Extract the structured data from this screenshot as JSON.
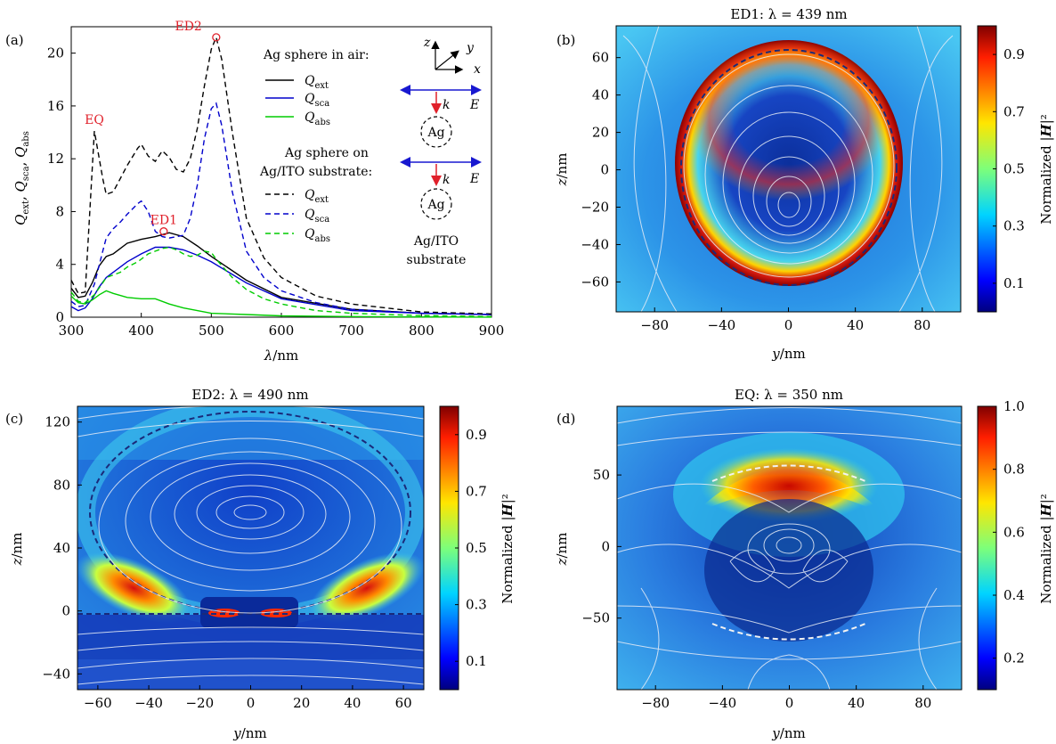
{
  "chart_data": [
    {
      "panel": "(a)",
      "type": "line",
      "xlabel": "λ/nm",
      "ylabel": "Q_ext, Q_sca, Q_abs",
      "xlim": [
        300,
        900
      ],
      "ylim": [
        0,
        22
      ],
      "xticks": [
        "300",
        "400",
        "500",
        "600",
        "700",
        "800",
        "900"
      ],
      "yticks": [
        "0",
        "4",
        "8",
        "12",
        "16",
        "20"
      ],
      "legend_headers": [
        "Ag sphere in air:",
        "Ag sphere on",
        "Ag/ITO substrate:"
      ],
      "inset_labels": {
        "axis_z": "z",
        "axis_y": "y",
        "axis_x": "x",
        "field_E": "E",
        "wavevector_k": "k",
        "sphere": "Ag",
        "substrate_l1": "Ag/ITO",
        "substrate_l2": "substrate"
      },
      "annotations": [
        {
          "text": "EQ",
          "x": 333,
          "y": 14.1
        },
        {
          "text": "ED1",
          "x": 432,
          "y": 6.5
        },
        {
          "text": "ED2",
          "x": 507,
          "y": 21.2
        }
      ],
      "series": [
        {
          "name": "Q_ext",
          "group": "air",
          "color": "#000000",
          "dash": false,
          "x": [
            300,
            310,
            320,
            330,
            340,
            350,
            360,
            380,
            400,
            420,
            440,
            460,
            480,
            500,
            550,
            600,
            700,
            800,
            900
          ],
          "y": [
            2.2,
            1.5,
            1.6,
            2.6,
            3.9,
            4.6,
            4.8,
            5.6,
            5.9,
            6.1,
            6.4,
            6.1,
            5.4,
            4.6,
            2.8,
            1.5,
            0.6,
            0.3,
            0.2
          ]
        },
        {
          "name": "Q_sca",
          "group": "air",
          "color": "#0000cc",
          "dash": false,
          "x": [
            300,
            310,
            320,
            330,
            340,
            350,
            360,
            380,
            400,
            420,
            440,
            460,
            480,
            500,
            550,
            600,
            700,
            800,
            900
          ],
          "y": [
            0.8,
            0.5,
            0.7,
            1.4,
            2.3,
            3.0,
            3.4,
            4.2,
            4.8,
            5.3,
            5.3,
            5.1,
            4.7,
            4.2,
            2.6,
            1.4,
            0.5,
            0.3,
            0.2
          ]
        },
        {
          "name": "Q_abs",
          "group": "air",
          "color": "#00cc00",
          "dash": false,
          "x": [
            300,
            310,
            320,
            330,
            340,
            350,
            360,
            380,
            400,
            420,
            440,
            460,
            480,
            500,
            550,
            600,
            700,
            800,
            900
          ],
          "y": [
            1.6,
            1.1,
            1.0,
            1.3,
            1.7,
            2.0,
            1.8,
            1.5,
            1.4,
            1.4,
            1.0,
            0.7,
            0.5,
            0.3,
            0.2,
            0.1,
            0.05,
            0.02,
            0.01
          ]
        },
        {
          "name": "Q_ext",
          "group": "substrate",
          "color": "#000000",
          "dash": true,
          "x": [
            300,
            310,
            320,
            333,
            345,
            350,
            360,
            370,
            380,
            395,
            400,
            410,
            420,
            430,
            440,
            450,
            460,
            470,
            480,
            490,
            500,
            507,
            515,
            530,
            550,
            575,
            600,
            650,
            700,
            800,
            900
          ],
          "y": [
            2.8,
            1.8,
            1.9,
            14.1,
            10.5,
            9.3,
            9.5,
            10.5,
            11.5,
            12.8,
            13.1,
            12.2,
            11.8,
            12.6,
            12.1,
            11.2,
            11.0,
            12.0,
            14.3,
            17.5,
            20.3,
            21.2,
            19.5,
            14.0,
            7.5,
            4.5,
            3.0,
            1.6,
            1.0,
            0.4,
            0.25
          ]
        },
        {
          "name": "Q_sca",
          "group": "substrate",
          "color": "#0000cc",
          "dash": true,
          "x": [
            300,
            310,
            320,
            333,
            345,
            350,
            360,
            370,
            380,
            395,
            400,
            410,
            420,
            430,
            440,
            450,
            460,
            470,
            480,
            490,
            500,
            507,
            515,
            530,
            550,
            575,
            600,
            650,
            700,
            800,
            900
          ],
          "y": [
            1.2,
            0.8,
            0.9,
            2.5,
            5.0,
            6.0,
            6.7,
            7.2,
            7.8,
            8.6,
            8.8,
            8.0,
            6.5,
            6.1,
            6.0,
            6.1,
            6.2,
            7.5,
            10.0,
            13.5,
            15.8,
            16.2,
            14.5,
            9.5,
            5.0,
            3.0,
            2.0,
            1.1,
            0.6,
            0.3,
            0.2
          ]
        },
        {
          "name": "Q_abs",
          "group": "substrate",
          "color": "#00cc00",
          "dash": true,
          "x": [
            300,
            310,
            320,
            333,
            345,
            350,
            360,
            370,
            380,
            395,
            400,
            410,
            420,
            430,
            440,
            450,
            460,
            470,
            480,
            490,
            500,
            507,
            515,
            530,
            550,
            575,
            600,
            650,
            700,
            800,
            900
          ],
          "y": [
            1.9,
            1.2,
            1.1,
            1.7,
            2.6,
            3.0,
            3.2,
            3.4,
            3.8,
            4.2,
            4.4,
            4.8,
            5.0,
            5.2,
            5.3,
            5.1,
            4.8,
            4.6,
            4.7,
            5.0,
            4.9,
            4.4,
            3.9,
            3.0,
            2.1,
            1.4,
            1.0,
            0.5,
            0.3,
            0.12,
            0.05
          ]
        }
      ]
    },
    {
      "panel": "(b)",
      "type": "heatmap",
      "title": "ED1: λ = 439 nm",
      "xlabel": "y/nm",
      "ylabel": "z/nm",
      "xlim": [
        -103,
        103
      ],
      "ylim": [
        -76,
        77
      ],
      "xticks": [
        "−80",
        "−40",
        "0",
        "40",
        "80"
      ],
      "yticks": [
        "60",
        "40",
        "20",
        "0",
        "−20",
        "−40",
        "−60"
      ],
      "colorbar_label": "Normalized |H|²",
      "colorbar_ticks": [
        "0.9",
        "0.7",
        "0.5",
        "0.3",
        "0.1"
      ],
      "colorbar_range": [
        0.0,
        1.0
      ]
    },
    {
      "panel": "(c)",
      "type": "heatmap",
      "title": "ED2: λ = 490 nm",
      "xlabel": "y/nm",
      "ylabel": "z/nm",
      "xlim": [
        -68,
        68
      ],
      "ylim": [
        -50,
        130
      ],
      "xticks": [
        "−60",
        "−40",
        "−20",
        "0",
        "20",
        "40",
        "60"
      ],
      "yticks": [
        "120",
        "80",
        "40",
        "0",
        "−40"
      ],
      "colorbar_label": "Normalized |H|²",
      "colorbar_ticks": [
        "0.9",
        "0.7",
        "0.5",
        "0.3",
        "0.1"
      ],
      "colorbar_range": [
        0.0,
        1.0
      ]
    },
    {
      "panel": "(d)",
      "type": "heatmap",
      "title": "EQ: λ = 350 nm",
      "xlabel": "y/nm",
      "ylabel": "z/nm",
      "xlim": [
        -103,
        103
      ],
      "ylim": [
        -100,
        98
      ],
      "xticks": [
        "−80",
        "−40",
        "0",
        "40",
        "80"
      ],
      "yticks": [
        "50",
        "0",
        "−50"
      ],
      "colorbar_label": "Normalized |H|²",
      "colorbar_ticks": [
        "1.0",
        "0.8",
        "0.6",
        "0.4",
        "0.2"
      ],
      "colorbar_range": [
        0.1,
        1.0
      ]
    }
  ]
}
